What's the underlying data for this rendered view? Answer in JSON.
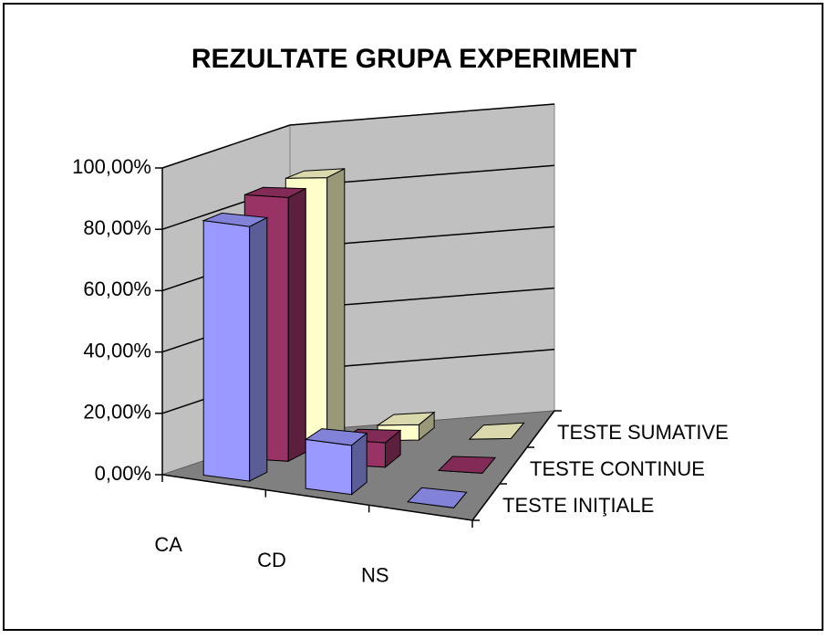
{
  "chart_data": {
    "type": "bar3d",
    "title": "REZULTATE GRUPA EXPERIMENT",
    "categories": [
      "CA",
      "CD",
      "NS"
    ],
    "series": [
      {
        "name": "TESTE INIŢIALE",
        "color": "#9999ff",
        "values": [
          83,
          16,
          0
        ]
      },
      {
        "name": "TESTE CONTINUE",
        "color": "#993366",
        "values": [
          86,
          8,
          0
        ]
      },
      {
        "name": "TESTE SUMATIVE",
        "color": "#ffffcc",
        "values": [
          86,
          5,
          0
        ]
      }
    ],
    "ylim": [
      0,
      100
    ],
    "yticks": [
      {
        "value": 0,
        "label": "0,00%"
      },
      {
        "value": 20,
        "label": "20,00%"
      },
      {
        "value": 40,
        "label": "40,00%"
      },
      {
        "value": 60,
        "label": "60,00%"
      },
      {
        "value": 80,
        "label": "80,00%"
      },
      {
        "value": 100,
        "label": "100,00%"
      }
    ],
    "grid": true
  }
}
